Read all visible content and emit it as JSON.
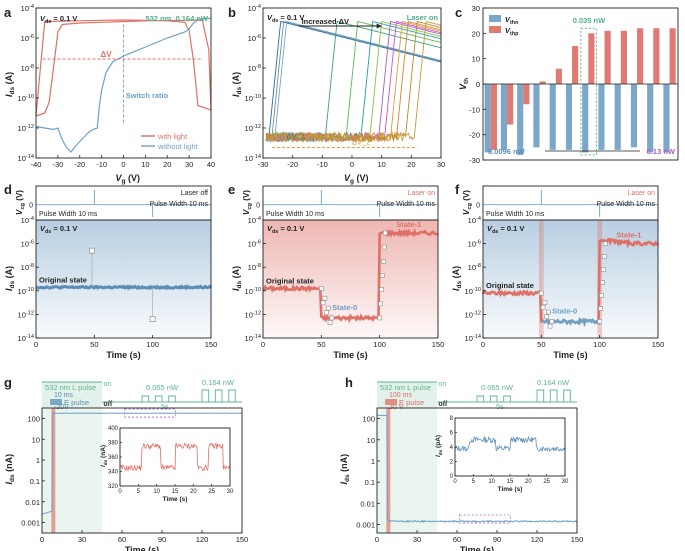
{
  "chart_data": [
    {
      "id": "a",
      "type": "line",
      "panel_label": "a",
      "xlabel": "V_g (V)",
      "ylabel": "I_ds (A)",
      "xlim": [
        -40,
        40
      ],
      "ylim": [
        -14,
        -4
      ],
      "x_ticks": [
        -40,
        -30,
        -20,
        -10,
        0,
        10,
        20,
        30,
        40
      ],
      "y_ticks": [
        -4,
        -6,
        -8,
        -10,
        -12,
        -14
      ],
      "y_tick_labels": [
        "10^-4",
        "10^-6",
        "10^-8",
        "10^-10",
        "10^-12",
        "10^-14"
      ],
      "annotations": {
        "vds": "V_ds = 0.1 V",
        "laser": "532 nm, 0.164 nW",
        "dv": "ΔV",
        "switch": "Switch ratio"
      },
      "legend": [
        "with light",
        "without light"
      ],
      "series": [
        {
          "name": "with light",
          "color": "#e06f66",
          "x": [
            -40,
            -38,
            -36,
            -20,
            -10,
            0,
            10,
            20,
            28,
            30,
            32,
            34,
            40,
            39,
            36,
            30,
            10,
            0,
            -10,
            -20,
            -28,
            -30,
            -32,
            -34,
            -36,
            -38,
            -40
          ],
          "y": [
            -11.2,
            -8.0,
            -4.9,
            -4.85,
            -4.82,
            -4.8,
            -4.82,
            -4.85,
            -4.95,
            -5.5,
            -7.5,
            -10.5,
            -10.8,
            -6.8,
            -4.8,
            -4.82,
            -4.85,
            -4.9,
            -4.95,
            -5.0,
            -5.1,
            -5.6,
            -8.0,
            -10.3,
            -11.0,
            -11.1,
            -11.2
          ]
        },
        {
          "name": "without light",
          "color": "#6fa0c8",
          "x": [
            -40,
            -36,
            -32,
            -30,
            -28,
            -26,
            -24,
            -22,
            -20,
            -18,
            -16,
            -14,
            -12,
            -11,
            -10,
            -8,
            -5,
            0,
            10,
            20,
            28,
            30,
            31,
            32,
            33,
            34,
            35,
            36,
            38,
            40
          ],
          "y": [
            -11.9,
            -12.0,
            -12.1,
            -12.0,
            -12.8,
            -13.3,
            -13.6,
            -13.2,
            -12.9,
            -12.6,
            -12.3,
            -12.1,
            -12.0,
            -10.5,
            -9.5,
            -8.3,
            -7.6,
            -7.2,
            -6.6,
            -6.0,
            -5.6,
            -5.4,
            -5.2,
            -5.0,
            -4.9,
            -4.8,
            -4.75,
            -4.72,
            -4.7,
            -4.68
          ]
        }
      ]
    },
    {
      "id": "b",
      "type": "line",
      "panel_label": "b",
      "xlabel": "V_g (V)",
      "ylabel": "I_ds (A)",
      "xlim": [
        -30,
        30
      ],
      "ylim": [
        -14,
        -4
      ],
      "x_ticks": [
        -30,
        -20,
        -10,
        0,
        10,
        20,
        30
      ],
      "y_ticks": [
        -4,
        -6,
        -8,
        -10,
        -12,
        -14
      ],
      "y_tick_labels": [
        "10^-4",
        "10^-6",
        "10^-8",
        "10^-10",
        "10^-12",
        "10^-14"
      ],
      "annotations": {
        "vds": "V_ds = 0.1 V",
        "increased": "Increased ΔV",
        "laser": "Laser on",
        "dv1": "ΔV_1",
        "dv2": "ΔV_2"
      },
      "curve_threshold_V": [
        -27,
        -26,
        -25,
        -8,
        -1,
        4,
        7,
        10,
        12,
        14,
        16,
        19,
        22
      ],
      "curve_colors": [
        "#1f6fb2",
        "#888888",
        "#6aa8d8",
        "#3aa36f",
        "#5cb85c",
        "#22a0a0",
        "#8fbf3f",
        "#9c5fc4",
        "#d04fd0",
        "#d2a23c",
        "#e0802f",
        "#b78a2b",
        "#c69a3a"
      ]
    },
    {
      "id": "c",
      "type": "bar",
      "panel_label": "c",
      "ylabel": "V_th",
      "ylim": [
        -30,
        30
      ],
      "y_ticks": [
        -30,
        -20,
        -10,
        0,
        10,
        20,
        30
      ],
      "legend": [
        "V_thn",
        "V_thp"
      ],
      "colors": {
        "V_thn": "#7da7c9",
        "V_thp": "#e07b73"
      },
      "series": [
        {
          "name": "V_thn",
          "values": [
            -27,
            -26,
            -28,
            -25,
            -26,
            -26,
            -27,
            -26,
            -26,
            -25,
            -27,
            -27
          ]
        },
        {
          "name": "V_thp",
          "values": [
            -26,
            -16,
            -8,
            1,
            6,
            15,
            20,
            21,
            21,
            22,
            22,
            22
          ]
        }
      ],
      "highlight_index": 6,
      "annotations": {
        "highlight": "0.035 nW",
        "start": "0.0096 nW",
        "end": "0.13 nW"
      }
    },
    {
      "id": "d",
      "type": "line",
      "panel_label": "d",
      "xlabel": "Time (s)",
      "ylabel_top": "V_cg (V)",
      "ylabel_bottom": "I_ds (A)",
      "xlim": [
        0,
        150
      ],
      "x_ticks": [
        0,
        50,
        100,
        150
      ],
      "ylim": [
        -14,
        -4
      ],
      "y_ticks": [
        -4,
        -6,
        -8,
        -10,
        -12,
        -14
      ],
      "y_tick_labels": [
        "10^-4",
        "10^-6",
        "10^-8",
        "10^-10",
        "10^-12",
        "10^-14"
      ],
      "annotations": {
        "laser": "Laser off",
        "pulse_right": "Pulse Width 10 ms",
        "pulse_left": "Pulse Width 10 ms",
        "vds": "V_ds = 0.1 V",
        "state": "Original state"
      },
      "base_level": -9.7,
      "pulse_times": [
        50,
        100
      ],
      "markers": [
        {
          "t": 48,
          "y": -6.6
        },
        {
          "t": 100,
          "y": -12.4
        }
      ]
    },
    {
      "id": "e",
      "type": "line",
      "panel_label": "e",
      "xlabel": "Time (s)",
      "ylabel_top": "V_cg (V)",
      "ylabel_bottom": "I_ds (A)",
      "xlim": [
        0,
        150
      ],
      "x_ticks": [
        0,
        50,
        100,
        150
      ],
      "ylim": [
        -14,
        -4
      ],
      "y_ticks": [
        -4,
        -6,
        -8,
        -10,
        -12,
        -14
      ],
      "y_tick_labels": [
        "10^-4",
        "10^-6",
        "10^-8",
        "10^-10",
        "10^-12",
        "10^-14"
      ],
      "annotations": {
        "laser": "Laser on",
        "pulse_right": "Pulse Width 10 ms",
        "pulse_left": "Pulse Width 10 ms",
        "vds": "V_ds = 0.1 V",
        "state0": "State-0",
        "state1": "State-1",
        "orig": "Original state"
      },
      "levels": {
        "original": -9.8,
        "state0": -12.3,
        "state1": -5.1
      },
      "pulse_times": [
        50,
        100
      ]
    },
    {
      "id": "f",
      "type": "line",
      "panel_label": "f",
      "xlabel": "Time (s)",
      "ylabel_top": "V_cg (V)",
      "ylabel_bottom": "I_ds (A)",
      "xlim": [
        0,
        150
      ],
      "x_ticks": [
        0,
        50,
        100,
        150
      ],
      "ylim": [
        -14,
        -4
      ],
      "y_ticks": [
        -4,
        -6,
        -8,
        -10,
        -12,
        -14
      ],
      "y_tick_labels": [
        "10^-4",
        "10^-6",
        "10^-8",
        "10^-10",
        "10^-12",
        "10^-14"
      ],
      "annotations": {
        "laser": "Laser on",
        "pulse_right": "Pulse Width 10 ms",
        "pulse_left": "Pulse Width 10 ms",
        "vds": "V_ds = 0.1 V",
        "state0": "State-0",
        "state1": "State-1",
        "orig": "Original state"
      },
      "levels": {
        "original": -10.2,
        "state0": -12.6,
        "state1": -6.0
      },
      "pulse_times": [
        50,
        100
      ]
    },
    {
      "id": "g",
      "type": "line",
      "panel_label": "g",
      "xlabel": "Time (s)",
      "ylabel": "I_ds (nA)",
      "xlim": [
        0,
        150
      ],
      "x_ticks": [
        0,
        30,
        60,
        90,
        120,
        150
      ],
      "ylog": [
        -3.5,
        2.5
      ],
      "y_ticks_log": [
        2,
        1,
        0,
        -1,
        -2,
        -3
      ],
      "y_tick_labels": [
        "100",
        "10",
        "1",
        "0.1",
        "0.01",
        "0.001"
      ],
      "annotations": {
        "l_pulse": "532 nm L pulse",
        "ms": "10 ms",
        "e_pulse": "E pulse",
        "vpulse": "-20V",
        "on": "on",
        "off": "off",
        "p1": "0.065 nW",
        "p2": "0.164 nW",
        "period": "5s"
      },
      "inset": {
        "xlabel": "Time (s)",
        "ylabel": "I_ds (nA)",
        "xlim": [
          0,
          30
        ],
        "ylim": [
          320,
          400
        ],
        "x_ticks": [
          0,
          5,
          10,
          15,
          20,
          25,
          30
        ],
        "y_ticks": [
          320,
          340,
          360,
          380,
          400
        ]
      }
    },
    {
      "id": "h",
      "type": "line",
      "panel_label": "h",
      "xlabel": "Time (s)",
      "ylabel": "I_ds (nA)",
      "xlim": [
        0,
        150
      ],
      "x_ticks": [
        0,
        30,
        60,
        90,
        120,
        150
      ],
      "ylog": [
        -3.4,
        2.5
      ],
      "y_ticks_log": [
        2,
        1,
        0,
        -1,
        -2,
        -3
      ],
      "y_tick_labels": [
        "100",
        "10",
        "1",
        "0.1",
        "0.01",
        "0.001"
      ],
      "annotations": {
        "l_pulse": "532 nm L pulse",
        "ms": "100 ms",
        "e_pulse": "E pulse",
        "vpulse": "30 V",
        "on": "on",
        "off": "off",
        "p1": "0.065 nW",
        "p2": "0.164 nW",
        "period": "5s"
      },
      "inset": {
        "xlabel": "Time (s)",
        "ylabel": "I_ds (pA)",
        "xlim": [
          0,
          30
        ],
        "ylim": [
          0,
          8
        ],
        "x_ticks": [
          0,
          5,
          10,
          15,
          20,
          25,
          30
        ],
        "y_ticks": [
          0,
          2,
          4,
          6,
          8
        ]
      }
    }
  ]
}
